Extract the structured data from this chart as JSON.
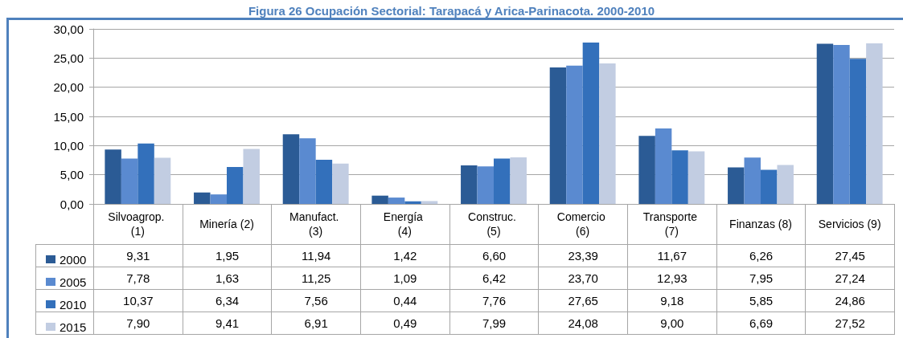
{
  "chart_data": {
    "type": "bar",
    "title": "Figura 26 Ocupación Sectorial: Tarapacá y Arica-Parinacota. 2000-2010",
    "categories": [
      "Silvoagrop. (1)",
      "Minería (2)",
      "Manufact. (3)",
      "Energía (4)",
      "Construc. (5)",
      "Comercio (6)",
      "Transporte (7)",
      "Finanzas (8)",
      "Servicios (9)"
    ],
    "series": [
      {
        "name": "2000",
        "color": "#2b5b95",
        "values": [
          9.31,
          1.95,
          11.94,
          1.42,
          6.6,
          23.39,
          11.67,
          6.26,
          27.45
        ],
        "value_labels": [
          "9,31",
          "1,95",
          "11,94",
          "1,42",
          "6,60",
          "23,39",
          "11,67",
          "6,26",
          "27,45"
        ]
      },
      {
        "name": "2005",
        "color": "#5a8ad0",
        "values": [
          7.78,
          1.63,
          11.25,
          1.09,
          6.42,
          23.7,
          12.93,
          7.95,
          27.24
        ],
        "value_labels": [
          "7,78",
          "1,63",
          "11,25",
          "1,09",
          "6,42",
          "23,70",
          "12,93",
          "7,95",
          "27,24"
        ]
      },
      {
        "name": "2010",
        "color": "#3370bb",
        "values": [
          10.37,
          6.34,
          7.56,
          0.44,
          7.76,
          27.65,
          9.18,
          5.85,
          24.86
        ],
        "value_labels": [
          "10,37",
          "6,34",
          "7,56",
          "0,44",
          "7,76",
          "27,65",
          "9,18",
          "5,85",
          "24,86"
        ]
      },
      {
        "name": "2015",
        "color": "#c2cde2",
        "values": [
          7.9,
          9.41,
          6.91,
          0.49,
          7.99,
          24.08,
          9.0,
          6.69,
          27.52
        ],
        "value_labels": [
          "7,90",
          "9,41",
          "6,91",
          "0,49",
          "7,99",
          "24,08",
          "9,00",
          "6,69",
          "27,52"
        ]
      }
    ],
    "ylim": [
      0,
      30
    ],
    "yticks": [
      {
        "value": 0,
        "label": "0,00"
      },
      {
        "value": 5,
        "label": "5,00"
      },
      {
        "value": 10,
        "label": "10,00"
      },
      {
        "value": 15,
        "label": "15,00"
      },
      {
        "value": 20,
        "label": "20,00"
      },
      {
        "value": 25,
        "label": "25,00"
      },
      {
        "value": 30,
        "label": "30,00"
      }
    ],
    "grid": "y",
    "legend": "bottom left"
  }
}
